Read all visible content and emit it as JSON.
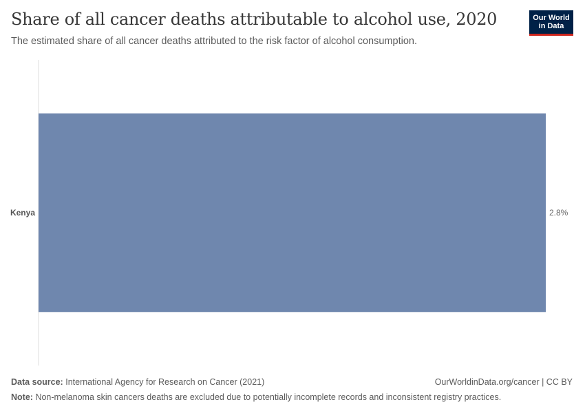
{
  "header": {
    "title": "Share of all cancer deaths attributable to alcohol use, 2020",
    "subtitle": "The estimated share of all cancer deaths attributed to the risk factor of alcohol consumption.",
    "logo_line1": "Our World",
    "logo_line2": "in Data"
  },
  "chart_data": {
    "type": "bar",
    "orientation": "horizontal",
    "categories": [
      "Kenya"
    ],
    "values": [
      2.8
    ],
    "value_labels": [
      "2.8%"
    ],
    "unit": "%",
    "bar_color": "#6f87ae",
    "grid": false
  },
  "footer": {
    "source_label": "Data source:",
    "source_text": "International Agency for Research on Cancer (2021)",
    "link_text": "OurWorldinData.org/cancer | CC BY",
    "note_label": "Note:",
    "note_text": "Non-melanoma skin cancers deaths are excluded due to potentially incomplete records and inconsistent registry practices."
  },
  "colors": {
    "brand": "#002147",
    "brand_accent": "#ce261e"
  }
}
